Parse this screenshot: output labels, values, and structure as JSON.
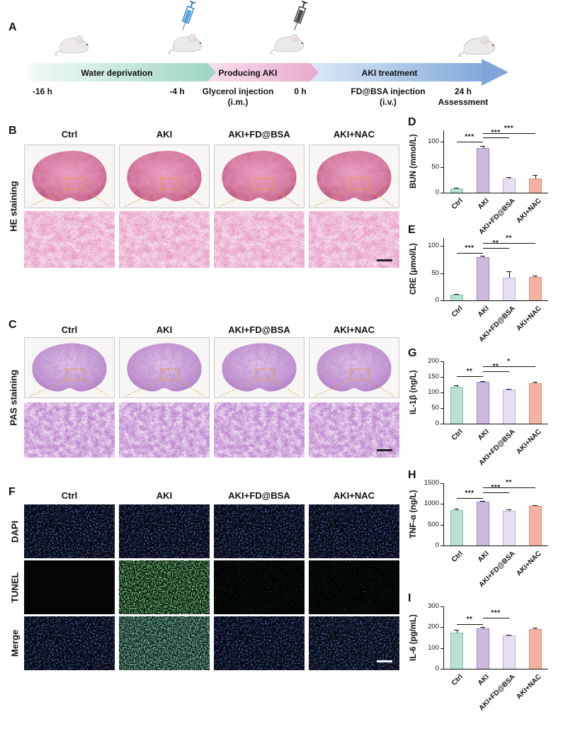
{
  "figure": {
    "panel_labels": {
      "A": "A",
      "B": "B",
      "C": "C",
      "D": "D",
      "E": "E",
      "F": "F",
      "G": "G",
      "H": "H",
      "I": "I"
    }
  },
  "timeline": {
    "segments": [
      "Water deprivation",
      "Producing AKI",
      "AKI treatment"
    ],
    "time_minus16": "-16 h",
    "time_minus4": "-4 h",
    "glycerol": "Glycerol injection",
    "glycerol_route": "(i.m.)",
    "time_zero": "0 h",
    "fdbsa": "FD@BSA injection",
    "fdbsa_route": "(i.v.)",
    "time_24": "24 h",
    "assessment": "Assessment"
  },
  "groups": [
    "Ctrl",
    "AKI",
    "AKI+FD@BSA",
    "AKI+NAC"
  ],
  "histology": {
    "he_label": "HE staining",
    "pas_label": "PAS staining"
  },
  "fluorescence": {
    "rows": [
      "DAPI",
      "TUNEL",
      "Merge"
    ]
  },
  "bar_style": {
    "fills": [
      "#b9e2d6",
      "#cbbade",
      "#e8def1",
      "#f4b3a2"
    ],
    "strokes": [
      "#7fbfae",
      "#9f86bd",
      "#c3abd6",
      "#dd8a74"
    ]
  },
  "chart_data": [
    {
      "type": "bar",
      "panel": "D",
      "ylabel": "BUN (mmol/L)",
      "categories": [
        "Ctrl",
        "AKI",
        "AKI+FD@BSA",
        "AKI+NAC"
      ],
      "values": [
        8,
        88,
        28,
        28
      ],
      "errors": [
        1.5,
        4,
        3,
        7
      ],
      "yticks": [
        0,
        50,
        100
      ],
      "ymax": 122,
      "significance": [
        {
          "from": 0,
          "to": 1,
          "label": "***",
          "y": 100
        },
        {
          "from": 1,
          "to": 2,
          "label": "***",
          "y": 108
        },
        {
          "from": 1,
          "to": 3,
          "label": "***",
          "y": 117
        }
      ]
    },
    {
      "type": "bar",
      "panel": "E",
      "ylabel": "CRE (μmol/L)",
      "categories": [
        "Ctrl",
        "AKI",
        "AKI+FD@BSA",
        "AKI+NAC"
      ],
      "values": [
        10,
        80,
        42,
        43
      ],
      "errors": [
        1.5,
        2.5,
        11,
        3
      ],
      "yticks": [
        0,
        50,
        100
      ],
      "ymax": 115,
      "significance": [
        {
          "from": 0,
          "to": 1,
          "label": "***",
          "y": 88
        },
        {
          "from": 1,
          "to": 2,
          "label": "**",
          "y": 97
        },
        {
          "from": 1,
          "to": 3,
          "label": "**",
          "y": 106
        }
      ]
    },
    {
      "type": "bar",
      "panel": "G",
      "ylabel": "IL-1β (ng/L)",
      "categories": [
        "Ctrl",
        "AKI",
        "AKI+FD@BSA",
        "AKI+NAC"
      ],
      "values": [
        118,
        135,
        108,
        130
      ],
      "errors": [
        5,
        2,
        4,
        3
      ],
      "yticks": [
        0,
        50,
        100,
        150,
        200
      ],
      "ymax": 200,
      "significance": [
        {
          "from": 0,
          "to": 1,
          "label": "**",
          "y": 152
        },
        {
          "from": 1,
          "to": 2,
          "label": "**",
          "y": 168
        },
        {
          "from": 1,
          "to": 3,
          "label": "*",
          "y": 184
        }
      ]
    },
    {
      "type": "bar",
      "panel": "H",
      "ylabel": "TNF-α (ng/L)",
      "categories": [
        "Ctrl",
        "AKI",
        "AKI+FD@BSA",
        "AKI+NAC"
      ],
      "values": [
        850,
        1050,
        840,
        950
      ],
      "errors": [
        30,
        25,
        25,
        20
      ],
      "yticks": [
        0,
        500,
        1000,
        1500
      ],
      "ymax": 1500,
      "significance": [
        {
          "from": 0,
          "to": 1,
          "label": "***",
          "y": 1150
        },
        {
          "from": 1,
          "to": 2,
          "label": "***",
          "y": 1270
        },
        {
          "from": 1,
          "to": 3,
          "label": "**",
          "y": 1390
        }
      ]
    },
    {
      "type": "bar",
      "panel": "I",
      "ylabel": "IL-6 (pg/mL)",
      "categories": [
        "Ctrl",
        "AKI",
        "AKI+FD@BSA",
        "AKI+NAC"
      ],
      "values": [
        175,
        195,
        160,
        190
      ],
      "errors": [
        12,
        6,
        5,
        8
      ],
      "yticks": [
        0,
        100,
        200,
        300
      ],
      "ymax": 300,
      "significance": [
        {
          "from": 0,
          "to": 1,
          "label": "**",
          "y": 215
        },
        {
          "from": 1,
          "to": 2,
          "label": "***",
          "y": 245
        }
      ]
    }
  ]
}
